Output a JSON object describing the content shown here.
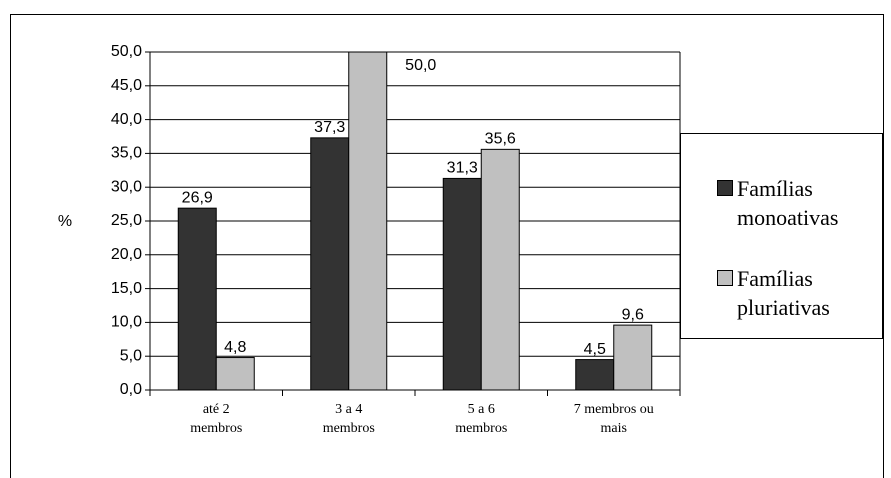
{
  "chart_data": {
    "type": "bar",
    "ylabel": "%",
    "categories": [
      "até 2\nmembros",
      "3 a 4\nmembros",
      "5 a 6\nmembros",
      "7 membros ou\nmais"
    ],
    "series": [
      {
        "name": "Famílias monoativas",
        "color": "#333333",
        "values": [
          26.9,
          37.3,
          31.3,
          4.5
        ],
        "value_labels": [
          "26,9",
          "37,3",
          "31,3",
          "4,5"
        ]
      },
      {
        "name": "Famílias pluriativas",
        "color": "#c0c0c0",
        "values": [
          4.8,
          50.0,
          35.6,
          9.6
        ],
        "value_labels": [
          "4,8",
          "50,0",
          "35,6",
          "9,6"
        ]
      }
    ],
    "ylim": [
      0,
      50
    ],
    "yticks": [
      {
        "value": 0,
        "label": "0,0"
      },
      {
        "value": 5,
        "label": "5,0"
      },
      {
        "value": 10,
        "label": "10,0"
      },
      {
        "value": 15,
        "label": "15,0"
      },
      {
        "value": 20,
        "label": "20,0"
      },
      {
        "value": 25,
        "label": "25,0"
      },
      {
        "value": 30,
        "label": "30,0"
      },
      {
        "value": 35,
        "label": "35,0"
      },
      {
        "value": 40,
        "label": "40,0"
      },
      {
        "value": 45,
        "label": "45,0"
      },
      {
        "value": 50,
        "label": "50,0"
      }
    ],
    "grid": true
  }
}
